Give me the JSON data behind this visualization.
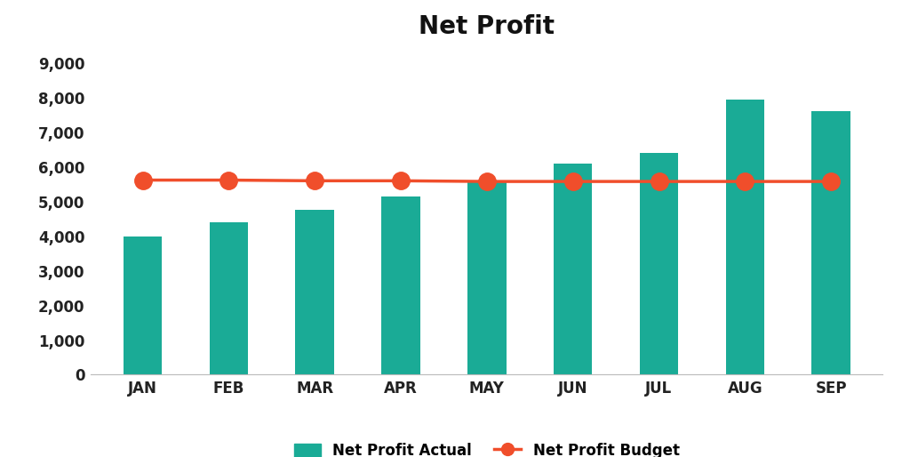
{
  "title": "Net Profit",
  "categories": [
    "JAN",
    "FEB",
    "MAR",
    "APR",
    "MAY",
    "JUN",
    "JUL",
    "AUG",
    "SEP"
  ],
  "actual_values": [
    4000,
    4400,
    4750,
    5150,
    5600,
    6100,
    6400,
    7950,
    7600
  ],
  "budget_values": [
    5620,
    5620,
    5600,
    5600,
    5580,
    5580,
    5580,
    5580,
    5580
  ],
  "bar_color": "#1aab96",
  "line_color": "#f04e2b",
  "background_color": "#ffffff",
  "ylim": [
    0,
    9500
  ],
  "yticks": [
    0,
    1000,
    2000,
    3000,
    4000,
    5000,
    6000,
    7000,
    8000,
    9000
  ],
  "ytick_labels": [
    "0",
    "1,000",
    "2,000",
    "3,000",
    "4,000",
    "5,000",
    "6,000",
    "7,000",
    "8,000",
    "9,000"
  ],
  "title_fontsize": 20,
  "tick_fontsize": 12,
  "legend_label_actual": "Net Profit Actual",
  "legend_label_budget": "Net Profit Budget",
  "legend_fontsize": 12
}
